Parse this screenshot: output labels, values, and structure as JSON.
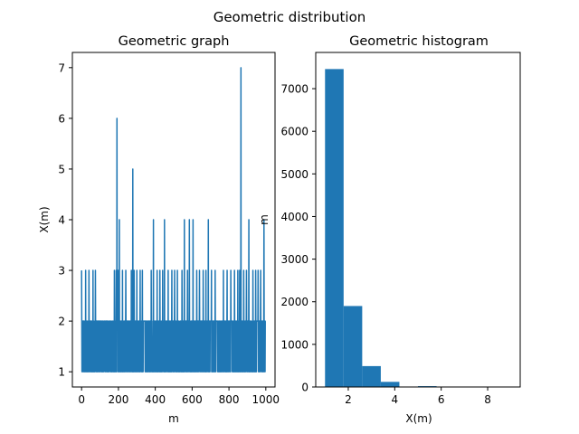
{
  "figure": {
    "suptitle": "Geometric distribution"
  },
  "colors": {
    "series": "#1f77b4",
    "axes": "#000000",
    "background": "#ffffff"
  },
  "chart_data": [
    {
      "type": "line",
      "title": "Geometric graph",
      "xlabel": "m",
      "ylabel": "X(m)",
      "xlim": [
        -50,
        1050
      ],
      "ylim": [
        0.7,
        7.3
      ],
      "xticks": [
        0,
        200,
        400,
        600,
        800,
        1000
      ],
      "yticks": [
        1,
        2,
        3,
        4,
        5,
        6,
        7
      ],
      "grid": false,
      "series": [
        {
          "color": "#1f77b4",
          "n": 1000,
          "base_values": [
            1,
            2
          ],
          "spikes": [
            {
              "x": 0,
              "y": 3
            },
            {
              "x": 22,
              "y": 3
            },
            {
              "x": 40,
              "y": 3
            },
            {
              "x": 62,
              "y": 3
            },
            {
              "x": 75,
              "y": 3
            },
            {
              "x": 178,
              "y": 3
            },
            {
              "x": 188,
              "y": 3
            },
            {
              "x": 192,
              "y": 6
            },
            {
              "x": 198,
              "y": 3
            },
            {
              "x": 205,
              "y": 4
            },
            {
              "x": 222,
              "y": 3
            },
            {
              "x": 240,
              "y": 3
            },
            {
              "x": 270,
              "y": 3
            },
            {
              "x": 278,
              "y": 5
            },
            {
              "x": 285,
              "y": 3
            },
            {
              "x": 300,
              "y": 3
            },
            {
              "x": 318,
              "y": 3
            },
            {
              "x": 330,
              "y": 3
            },
            {
              "x": 378,
              "y": 3
            },
            {
              "x": 390,
              "y": 4
            },
            {
              "x": 410,
              "y": 3
            },
            {
              "x": 425,
              "y": 3
            },
            {
              "x": 440,
              "y": 3
            },
            {
              "x": 450,
              "y": 4
            },
            {
              "x": 470,
              "y": 3
            },
            {
              "x": 490,
              "y": 3
            },
            {
              "x": 505,
              "y": 3
            },
            {
              "x": 520,
              "y": 3
            },
            {
              "x": 545,
              "y": 3
            },
            {
              "x": 558,
              "y": 4
            },
            {
              "x": 575,
              "y": 3
            },
            {
              "x": 585,
              "y": 4
            },
            {
              "x": 605,
              "y": 4
            },
            {
              "x": 625,
              "y": 3
            },
            {
              "x": 640,
              "y": 3
            },
            {
              "x": 660,
              "y": 3
            },
            {
              "x": 675,
              "y": 3
            },
            {
              "x": 688,
              "y": 4
            },
            {
              "x": 705,
              "y": 3
            },
            {
              "x": 725,
              "y": 3
            },
            {
              "x": 770,
              "y": 3
            },
            {
              "x": 790,
              "y": 3
            },
            {
              "x": 810,
              "y": 3
            },
            {
              "x": 830,
              "y": 3
            },
            {
              "x": 848,
              "y": 3
            },
            {
              "x": 858,
              "y": 3
            },
            {
              "x": 865,
              "y": 7
            },
            {
              "x": 880,
              "y": 3
            },
            {
              "x": 895,
              "y": 3
            },
            {
              "x": 908,
              "y": 4
            },
            {
              "x": 930,
              "y": 3
            },
            {
              "x": 945,
              "y": 3
            },
            {
              "x": 958,
              "y": 3
            },
            {
              "x": 972,
              "y": 3
            },
            {
              "x": 990,
              "y": 4
            }
          ]
        }
      ]
    },
    {
      "type": "bar",
      "title": "Geometric histogram",
      "xlabel": "X(m)",
      "ylabel": "m",
      "xlim": [
        0.6,
        9.4
      ],
      "ylim": [
        0,
        7850
      ],
      "xticks": [
        2,
        4,
        6,
        8
      ],
      "yticks": [
        0,
        1000,
        2000,
        3000,
        4000,
        5000,
        6000,
        7000
      ],
      "grid": false,
      "bin_edges": [
        1.0,
        1.8,
        2.6,
        3.4,
        4.2,
        5.0,
        5.8,
        6.6,
        7.4,
        8.2,
        9.0
      ],
      "values": [
        7460,
        1900,
        490,
        120,
        0,
        20,
        0,
        0,
        0,
        5
      ]
    }
  ]
}
